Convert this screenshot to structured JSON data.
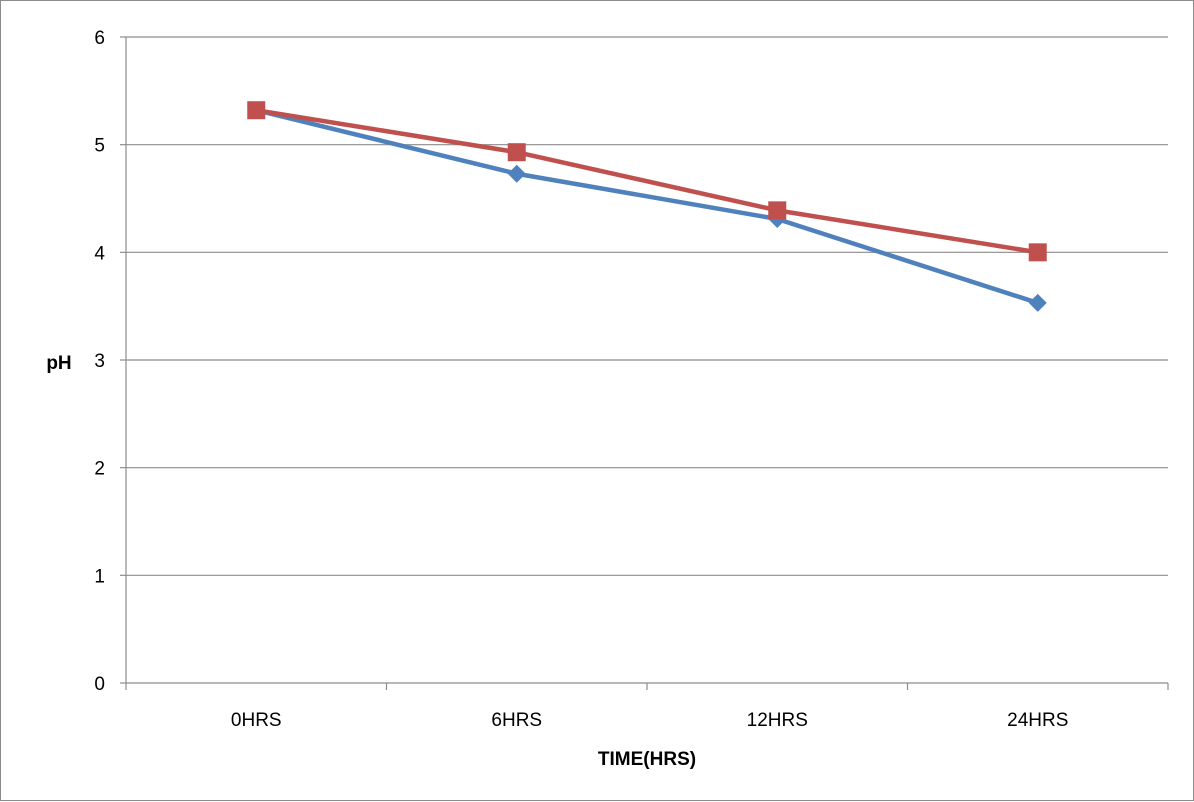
{
  "chart_data": {
    "type": "line",
    "title": "",
    "xlabel": "TIME(HRS)",
    "ylabel": "pH",
    "categories": [
      "0HRS",
      "6HRS",
      "12HRS",
      "24HRS"
    ],
    "ylim": [
      0,
      6
    ],
    "yticks": [
      "0",
      "1",
      "2",
      "3",
      "4",
      "5",
      "6"
    ],
    "grid": true,
    "legend": "none",
    "series": [
      {
        "marker": "diamond",
        "color": "#4f81bd",
        "values": [
          5.32,
          4.73,
          4.31,
          3.53
        ]
      },
      {
        "marker": "square",
        "color": "#c0504d",
        "values": [
          5.32,
          4.93,
          4.39,
          4.0
        ]
      }
    ]
  }
}
